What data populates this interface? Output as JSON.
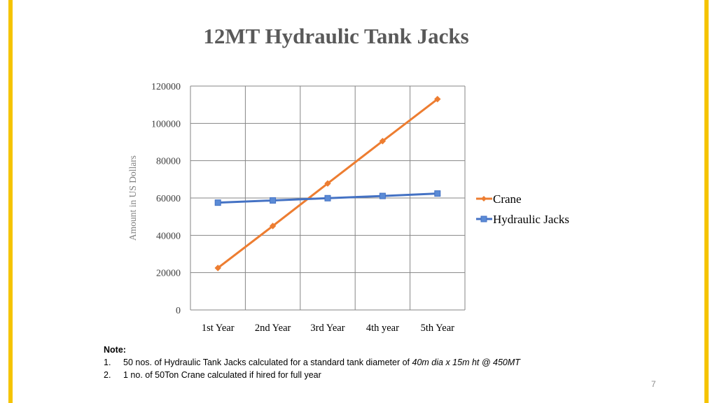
{
  "slide": {
    "title": "12MT Hydraulic Tank Jacks",
    "page_number": "7",
    "accent_color": "#f5c400"
  },
  "note": {
    "title": "Note:",
    "items": [
      {
        "number": "1.",
        "text": "50 nos. of Hydraulic Tank Jacks calculated for a standard tank diameter of ",
        "emphasis": "40m dia x 15m ht @ 450MT"
      },
      {
        "number": "2.",
        "text": "1 no. of 50Ton Crane calculated if hired for full year",
        "emphasis": ""
      }
    ]
  },
  "chart_data": {
    "type": "line",
    "title": "",
    "xlabel": "",
    "ylabel": "Amount in US Dollars",
    "categories": [
      "1st Year",
      "2nd Year",
      "3rd Year",
      "4th year",
      "5th Year"
    ],
    "ylim": [
      0,
      120000
    ],
    "yticks": [
      0,
      20000,
      40000,
      60000,
      80000,
      100000,
      120000
    ],
    "grid": true,
    "legend_position": "right",
    "series": [
      {
        "name": "Crane",
        "values": [
          22500,
          45000,
          67800,
          90500,
          113000
        ],
        "color": "#ed7d31",
        "marker": "diamond"
      },
      {
        "name": "Hydraulic Jacks",
        "values": [
          57500,
          58700,
          59900,
          61100,
          62400
        ],
        "color": "#4472c4",
        "marker": "square"
      }
    ]
  }
}
